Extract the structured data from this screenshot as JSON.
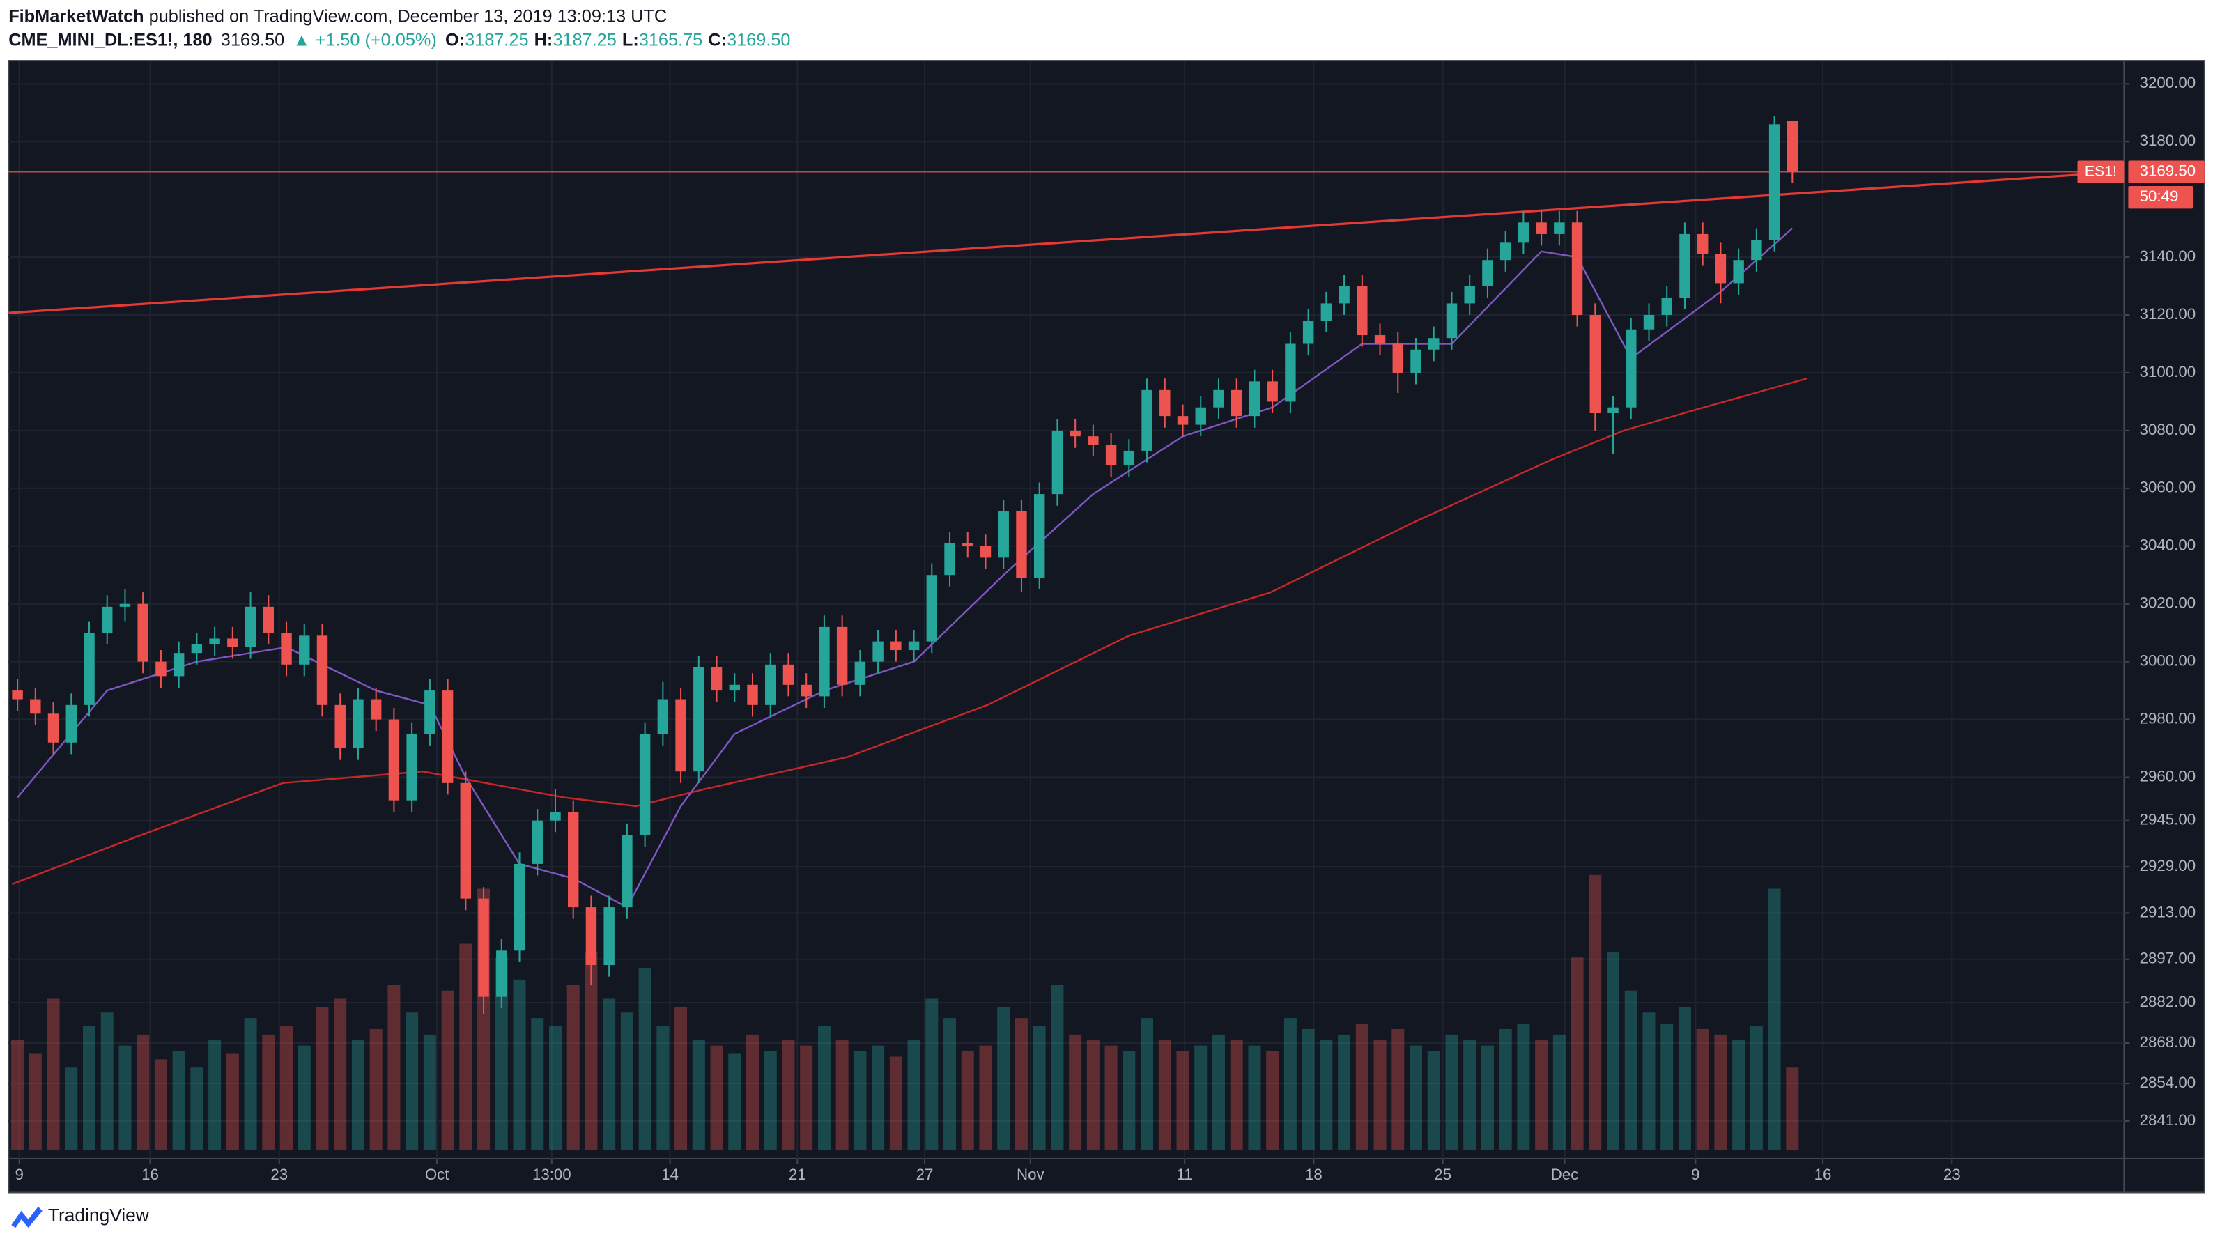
{
  "header": {
    "author": "FibMarketWatch",
    "published": " published on TradingView.com, December 13, 2019 13:09:13 UTC"
  },
  "chart_data": {
    "type": "candlestick",
    "symbol": "CME_MINI_DL:ES1!, 180",
    "last": "3169.50",
    "change": "▲ +1.50 (+0.05%)",
    "ohlc_labels": [
      "O:",
      "H:",
      "L:",
      "C:"
    ],
    "ohlc_values": [
      "3187.25",
      "3187.25",
      "3165.75",
      "3169.50"
    ],
    "x": [
      0,
      1,
      2,
      3,
      4,
      5,
      6,
      7,
      8,
      9,
      10,
      11,
      12,
      13,
      14,
      15,
      16,
      17,
      18,
      19,
      20,
      21,
      22,
      23,
      24,
      25,
      26,
      27,
      28,
      29,
      30,
      31,
      32,
      33,
      34,
      35,
      36,
      37,
      38,
      39,
      40,
      41,
      42,
      43,
      44,
      45,
      46,
      47,
      48,
      49,
      50,
      51,
      52,
      53,
      54,
      55,
      56,
      57,
      58,
      59,
      60,
      61,
      62,
      63,
      64,
      65,
      66,
      67,
      68,
      69,
      70,
      71,
      72,
      73,
      74,
      75,
      76,
      77,
      78,
      79,
      80,
      81,
      82,
      83,
      84,
      85,
      86,
      87,
      88,
      89,
      90,
      91,
      92,
      93,
      94,
      95,
      96,
      97,
      98,
      99
    ],
    "open": [
      2990,
      2987,
      2982,
      2972,
      2985,
      3010,
      3019,
      3020,
      3000,
      2995,
      3003,
      3006,
      3008,
      3005,
      3019,
      3010,
      2999,
      3009,
      2985,
      2970,
      2987,
      2980,
      2952,
      2975,
      2990,
      2958,
      2918,
      2884,
      2900,
      2930,
      2945,
      2948,
      2915,
      2895,
      2915,
      2940,
      2975,
      2987,
      2962,
      2998,
      2990,
      2992,
      2985,
      2999,
      2992,
      2988,
      3012,
      2992,
      3000,
      3007,
      3004,
      3007,
      3030,
      3041,
      3040,
      3036,
      3052,
      3029,
      3058,
      3080,
      3078,
      3075,
      3068,
      3073,
      3094,
      3085,
      3082,
      3088,
      3094,
      3085,
      3097,
      3090,
      3110,
      3118,
      3124,
      3130,
      3113,
      3110,
      3100,
      3108,
      3112,
      3124,
      3130,
      3139,
      3145,
      3152,
      3148,
      3152,
      3120,
      3086,
      3088,
      3115,
      3120,
      3126,
      3148,
      3141,
      3131,
      3139,
      3146,
      3187.25
    ],
    "high": [
      2994,
      2991,
      2986,
      2989,
      3014,
      3023,
      3025,
      3024,
      3004,
      3007,
      3010,
      3012,
      3012,
      3024,
      3023,
      3014,
      3013,
      3013,
      2989,
      2991,
      2991,
      2984,
      2979,
      2994,
      2994,
      2962,
      2922,
      2904,
      2934,
      2949,
      2956,
      2952,
      2919,
      2919,
      2944,
      2979,
      2993,
      2991,
      3002,
      3002,
      2996,
      2996,
      3003,
      3003,
      2996,
      3016,
      3016,
      3004,
      3011,
      3011,
      3011,
      3034,
      3045,
      3045,
      3044,
      3056,
      3056,
      3062,
      3084,
      3084,
      3082,
      3079,
      3077,
      3098,
      3098,
      3089,
      3092,
      3098,
      3098,
      3101,
      3101,
      3114,
      3122,
      3128,
      3134,
      3134,
      3117,
      3114,
      3112,
      3116,
      3128,
      3134,
      3143,
      3149,
      3156,
      3156,
      3156,
      3156,
      3124,
      3092,
      3119,
      3124,
      3130,
      3152,
      3152,
      3145,
      3143,
      3150,
      3189,
      3187.25
    ],
    "low": [
      2983,
      2978,
      2968,
      2968,
      2981,
      3006,
      3014,
      2996,
      2991,
      2991,
      2999,
      3002,
      3001,
      3001,
      3006,
      2995,
      2995,
      2981,
      2966,
      2966,
      2976,
      2948,
      2948,
      2971,
      2954,
      2914,
      2878,
      2880,
      2896,
      2926,
      2941,
      2911,
      2888,
      2891,
      2911,
      2936,
      2971,
      2958,
      2958,
      2986,
      2986,
      2981,
      2981,
      2988,
      2984,
      2984,
      2988,
      2988,
      2996,
      3000,
      3000,
      3003,
      3026,
      3036,
      3032,
      3032,
      3024,
      3025,
      3054,
      3074,
      3071,
      3064,
      3064,
      3069,
      3081,
      3078,
      3078,
      3084,
      3081,
      3081,
      3086,
      3086,
      3106,
      3114,
      3120,
      3109,
      3106,
      3093,
      3096,
      3104,
      3108,
      3120,
      3126,
      3135,
      3141,
      3144,
      3144,
      3116,
      3080,
      3072,
      3084,
      3111,
      3116,
      3122,
      3137,
      3124,
      3127,
      3135,
      3142,
      3165.75
    ],
    "close": [
      2987,
      2982,
      2972,
      2985,
      3010,
      3019,
      3020,
      3000,
      2995,
      3003,
      3006,
      3008,
      3005,
      3019,
      3010,
      2999,
      3009,
      2985,
      2970,
      2987,
      2980,
      2952,
      2975,
      2990,
      2958,
      2918,
      2884,
      2900,
      2930,
      2945,
      2948,
      2915,
      2895,
      2915,
      2940,
      2975,
      2987,
      2962,
      2998,
      2990,
      2992,
      2985,
      2999,
      2992,
      2988,
      3012,
      2992,
      3000,
      3007,
      3004,
      3007,
      3030,
      3041,
      3040,
      3036,
      3052,
      3029,
      3058,
      3080,
      3078,
      3075,
      3068,
      3073,
      3094,
      3085,
      3082,
      3088,
      3094,
      3085,
      3097,
      3090,
      3110,
      3118,
      3124,
      3130,
      3113,
      3110,
      3100,
      3108,
      3112,
      3124,
      3130,
      3139,
      3145,
      3152,
      3148,
      3152,
      3120,
      3086,
      3088,
      3115,
      3120,
      3126,
      3148,
      3141,
      3131,
      3139,
      3146,
      3186,
      3169.5
    ],
    "volume": [
      40,
      35,
      55,
      30,
      45,
      50,
      38,
      42,
      33,
      36,
      30,
      40,
      35,
      48,
      42,
      45,
      38,
      52,
      55,
      40,
      44,
      60,
      50,
      42,
      58,
      75,
      95,
      70,
      62,
      48,
      45,
      60,
      72,
      55,
      50,
      66,
      45,
      52,
      40,
      38,
      35,
      42,
      36,
      40,
      38,
      45,
      40,
      36,
      38,
      34,
      40,
      55,
      48,
      36,
      38,
      52,
      48,
      45,
      60,
      42,
      40,
      38,
      36,
      48,
      40,
      36,
      38,
      42,
      40,
      38,
      36,
      48,
      44,
      40,
      42,
      46,
      40,
      44,
      38,
      36,
      42,
      40,
      38,
      44,
      46,
      40,
      42,
      70,
      100,
      72,
      58,
      50,
      46,
      52,
      44,
      42,
      40,
      45,
      95,
      30
    ],
    "up_color": "#26a69a",
    "down_color": "#ef5350",
    "xlim": [
      -0.5,
      117.5
    ],
    "xticks": [
      {
        "value": 0.1,
        "label": "9"
      },
      {
        "value": 7.4,
        "label": "16"
      },
      {
        "value": 14.6,
        "label": "23"
      },
      {
        "value": 23.4,
        "label": "Oct"
      },
      {
        "value": 29.8,
        "label": "13:00"
      },
      {
        "value": 36.4,
        "label": "14"
      },
      {
        "value": 43.5,
        "label": "21"
      },
      {
        "value": 50.6,
        "label": "27"
      },
      {
        "value": 56.5,
        "label": "Nov"
      },
      {
        "value": 65.1,
        "label": "11"
      },
      {
        "value": 72.3,
        "label": "18"
      },
      {
        "value": 79.5,
        "label": "25"
      },
      {
        "value": 86.3,
        "label": "Dec"
      },
      {
        "value": 93.6,
        "label": "9"
      },
      {
        "value": 100.7,
        "label": "16"
      },
      {
        "value": 107.9,
        "label": "23"
      }
    ],
    "ylim": [
      2828,
      3208
    ],
    "yticks": [
      {
        "value": 3200,
        "label": "3200.00"
      },
      {
        "value": 3180,
        "label": "3180.00"
      },
      {
        "value": 3140,
        "label": "3140.00"
      },
      {
        "value": 3120,
        "label": "3120.00"
      },
      {
        "value": 3100,
        "label": "3100.00"
      },
      {
        "value": 3080,
        "label": "3080.00"
      },
      {
        "value": 3060,
        "label": "3060.00"
      },
      {
        "value": 3040,
        "label": "3040.00"
      },
      {
        "value": 3020,
        "label": "3020.00"
      },
      {
        "value": 3000,
        "label": "3000.00"
      },
      {
        "value": 2980,
        "label": "2980.00"
      },
      {
        "value": 2960,
        "label": "2960.00"
      },
      {
        "value": 2945,
        "label": "2945.00"
      },
      {
        "value": 2929,
        "label": "2929.00"
      },
      {
        "value": 2913,
        "label": "2913.00"
      },
      {
        "value": 2897,
        "label": "2897.00"
      },
      {
        "value": 2882,
        "label": "2882.00"
      },
      {
        "value": 2868,
        "label": "2868.00"
      },
      {
        "value": 2854,
        "label": "2854.00"
      },
      {
        "value": 2841,
        "label": "2841.00"
      }
    ],
    "grid": true,
    "indicators": [
      {
        "color": "#c62828",
        "x": [
          -0.3,
          6.9,
          14.8,
          22.6,
          30.5,
          34.5,
          38.4,
          46.3,
          54.1,
          62,
          69.9,
          77.8,
          85.6,
          89.6,
          93.5,
          99.8
        ],
        "values": [
          2923,
          2940,
          2958,
          2962,
          2953,
          2950,
          2956,
          2967,
          2985,
          3009,
          3024,
          3048,
          3070,
          3080,
          3087,
          3098
        ]
      },
      {
        "color": "#7e57c2",
        "x": [
          0,
          5,
          10,
          15,
          20,
          23,
          25,
          28,
          31,
          34,
          37,
          40,
          45,
          50,
          55,
          60,
          65,
          70,
          75,
          80,
          85,
          87,
          90,
          95,
          99
        ],
        "values": [
          2953,
          2990,
          3000,
          3005,
          2990,
          2985,
          2960,
          2930,
          2925,
          2915,
          2950,
          2975,
          2990,
          3000,
          3030,
          3058,
          3078,
          3088,
          3110,
          3110,
          3142,
          3140,
          3105,
          3128,
          3150
        ]
      }
    ],
    "trendline": {
      "color": "#e53935",
      "x": [
        -0.5,
        117.5
      ],
      "y": [
        3120.7,
        3169.6
      ]
    },
    "price_tag": {
      "symbol": "ES1!",
      "price": "3169.50",
      "countdown": "50:49"
    }
  },
  "footer": {
    "brand": "TradingView"
  }
}
